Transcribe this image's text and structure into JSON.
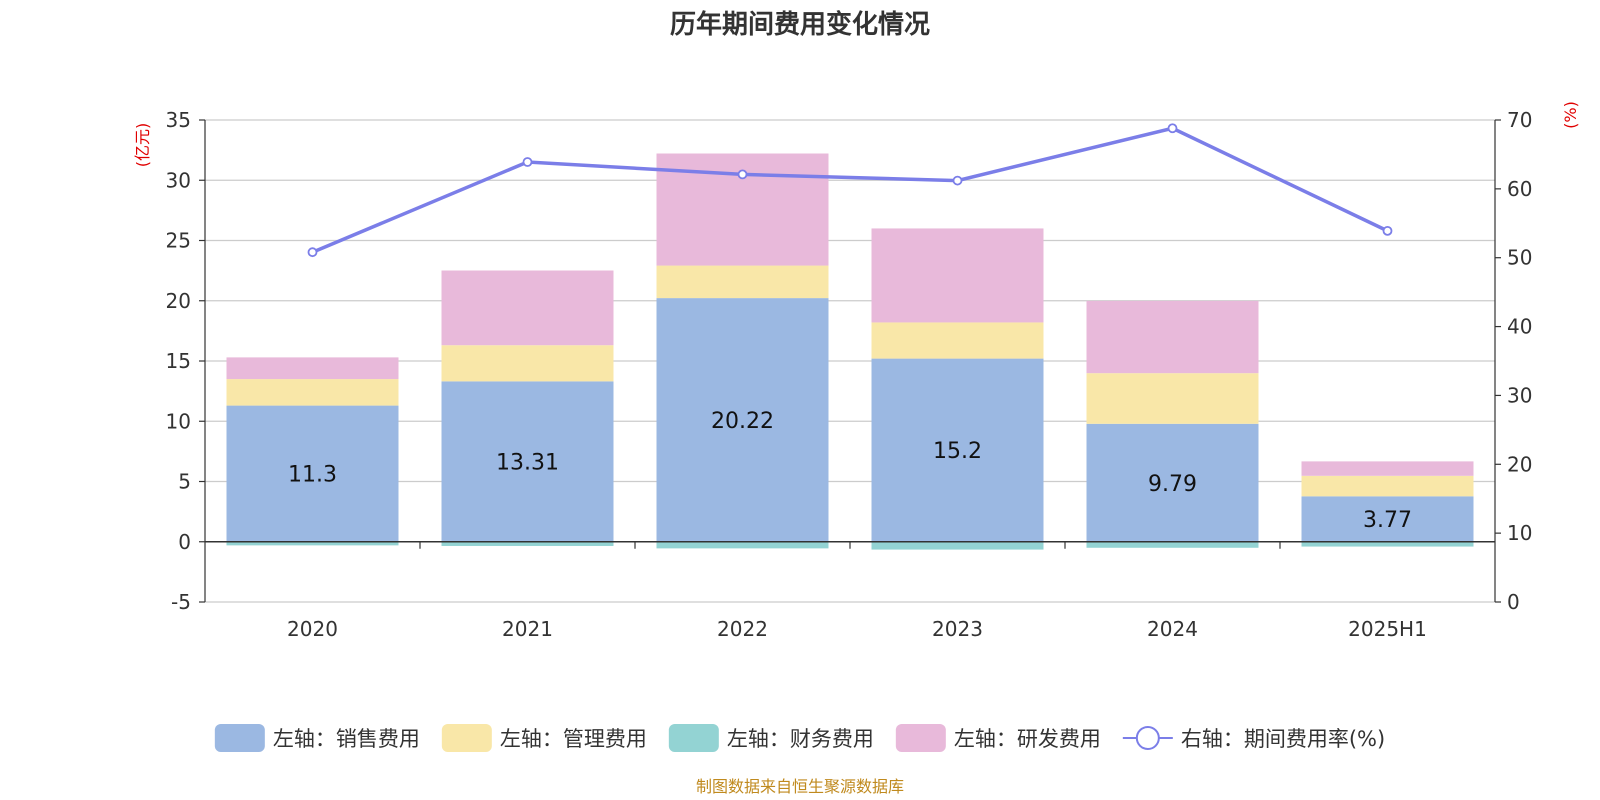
{
  "chart_data": {
    "type": "bar",
    "title": "历年期间费用变化情况",
    "categories": [
      "2020",
      "2021",
      "2022",
      "2023",
      "2024",
      "2025H1"
    ],
    "left_axis": {
      "unit": "(亿元)",
      "min": -5,
      "max": 35,
      "ticks": [
        -5,
        0,
        5,
        10,
        15,
        20,
        25,
        30,
        35
      ]
    },
    "right_axis": {
      "unit": "(%)",
      "min": 0,
      "max": 70,
      "ticks": [
        0,
        10,
        20,
        30,
        40,
        50,
        60,
        70
      ]
    },
    "series": [
      {
        "name": "左轴：销售费用",
        "type": "bar",
        "stack": "cost",
        "color": "#9bb8e2",
        "values": [
          11.3,
          13.31,
          20.22,
          15.2,
          9.79,
          3.77
        ],
        "show_labels": true
      },
      {
        "name": "左轴：管理费用",
        "type": "bar",
        "stack": "cost",
        "color": "#f9e7a8",
        "values": [
          2.2,
          3.0,
          2.7,
          3.0,
          4.2,
          1.7
        ]
      },
      {
        "name": "左轴：财务费用",
        "type": "bar",
        "stack": "cost",
        "color": "#93d3d3",
        "values": [
          -0.3,
          -0.35,
          -0.55,
          -0.65,
          -0.5,
          -0.4
        ]
      },
      {
        "name": "左轴：研发费用",
        "type": "bar",
        "stack": "cost",
        "color": "#e8b9da",
        "values": [
          1.8,
          6.2,
          9.3,
          7.8,
          6.0,
          1.2
        ]
      },
      {
        "name": "右轴：期间费用率(%)",
        "type": "line",
        "axis": "right",
        "color": "#7b7ee8",
        "values": [
          50.8,
          63.9,
          62.1,
          61.2,
          68.8,
          53.9
        ]
      }
    ],
    "grid": true,
    "legend_position": "bottom"
  },
  "source_note": "制图数据来自恒生聚源数据库"
}
